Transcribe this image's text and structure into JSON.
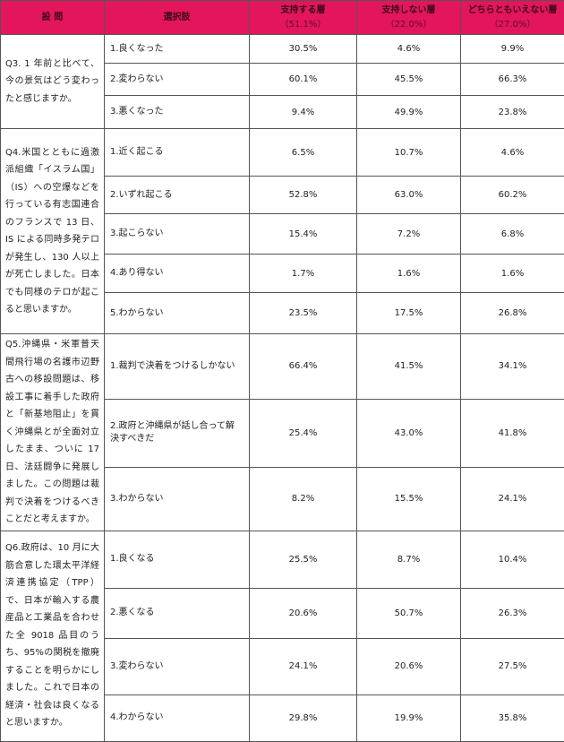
{
  "header": {
    "question": "設 問",
    "option": "選択肢",
    "groups": [
      {
        "label": "支持する層",
        "share": "（51.1%）"
      },
      {
        "label": "支持しない層",
        "share": "（22.0%）"
      },
      {
        "label": "どちらともいえない層",
        "share": "（27.0%）"
      }
    ]
  },
  "accent_color": "#e3155c",
  "questions": [
    {
      "text": "Q3. 1 年前と比べて、今の景気はどう変わったと感じますか。",
      "rows": [
        {
          "option": "1.良くなった",
          "values": [
            "30.5%",
            "4.6%",
            "9.9%"
          ]
        },
        {
          "option": "2.変わらない",
          "values": [
            "60.1%",
            "45.5%",
            "66.3%"
          ]
        },
        {
          "option": "3.悪くなった",
          "values": [
            "9.4%",
            "49.9%",
            "23.8%"
          ]
        }
      ]
    },
    {
      "text": "Q4.米国とともに過激派組織「イスラム国」（IS）への空爆などを行っている有志国連合のフランスで 13 日、IS による同時多発テロが発生し、130 人以上が死亡しました。日本でも同様のテロが起こると思いますか。",
      "rows": [
        {
          "option": "1.近く起こる",
          "values": [
            "6.5%",
            "10.7%",
            "4.6%"
          ]
        },
        {
          "option": "2.いずれ起こる",
          "values": [
            "52.8%",
            "63.0%",
            "60.2%"
          ]
        },
        {
          "option": "3.起こらない",
          "values": [
            "15.4%",
            "7.2%",
            "6.8%"
          ]
        },
        {
          "option": "4.あり得ない",
          "values": [
            "1.7%",
            "1.6%",
            "1.6%"
          ]
        },
        {
          "option": "5.わからない",
          "values": [
            "23.5%",
            "17.5%",
            "26.8%"
          ]
        }
      ]
    },
    {
      "text": "Q5.沖縄県・米軍普天間飛行場の名護市辺野古への移設問題は、移設工事に着手した政府と「新基地阻止」を貫く沖縄県とが全面対立したまま、ついに 17 日、法廷闘争に発展しました。この問題は裁判で決着をつけるべきことだと考えますか。",
      "rows": [
        {
          "option": "1.裁判で決着をつけるしかない",
          "values": [
            "66.4%",
            "41.5%",
            "34.1%"
          ]
        },
        {
          "option": "2.政府と沖縄県が話し合って解決すべきだ",
          "values": [
            "25.4%",
            "43.0%",
            "41.8%"
          ]
        },
        {
          "option": "3.わからない",
          "values": [
            "8.2%",
            "15.5%",
            "24.1%"
          ]
        }
      ]
    },
    {
      "text": "Q6.政府は、10 月に大筋合意した環太平洋経済連携協定（TPP）で、日本が輸入する農産品と工業品を合わせた全 9018 品目のうち、95%の関税を撤廃することを明らかにしました。これで日本の経済・社会は良くなると思いますか。",
      "rows": [
        {
          "option": "1.良くなる",
          "values": [
            "25.5%",
            "8.7%",
            "10.4%"
          ]
        },
        {
          "option": "2.悪くなる",
          "values": [
            "20.6%",
            "50.7%",
            "26.3%"
          ]
        },
        {
          "option": "3.変わらない",
          "values": [
            "24.1%",
            "20.6%",
            "27.5%"
          ]
        },
        {
          "option": "4.わからない",
          "values": [
            "29.8%",
            "19.9%",
            "35.8%"
          ]
        }
      ]
    }
  ]
}
